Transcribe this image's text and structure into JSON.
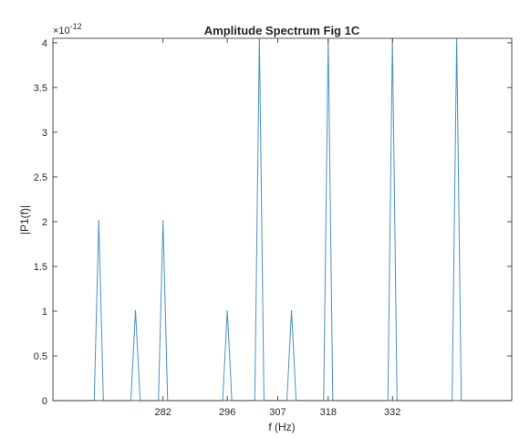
{
  "chart_data": {
    "type": "line",
    "title": "Amplitude Spectrum Fig 1C",
    "xlabel": "f (Hz)",
    "ylabel": "|P1(f)|",
    "y_exponent_label": "×10",
    "y_exponent": "-12",
    "xlim": [
      258,
      358
    ],
    "ylim": [
      0,
      4.05
    ],
    "xticks": [
      282,
      296,
      307,
      318,
      332
    ],
    "yticks": [
      0,
      0.5,
      1,
      1.5,
      2,
      2.5,
      3,
      3.5,
      4
    ],
    "ytick_labels": [
      "0",
      "0.5",
      "1",
      "1.5",
      "2",
      "2.5",
      "3",
      "3.5",
      "4"
    ],
    "grid": false,
    "series": [
      {
        "color": "#4a90c8",
        "x": [
          258,
          267,
          268,
          269,
          275,
          276,
          277,
          281,
          282,
          283,
          295,
          296,
          297,
          302,
          303,
          304,
          309,
          310,
          311,
          317,
          318,
          319,
          331,
          332,
          333,
          345,
          346,
          347,
          358
        ],
        "y": [
          0,
          0,
          2.02,
          0,
          0,
          1.01,
          0,
          0,
          2.02,
          0,
          0,
          1.01,
          0,
          0,
          4.05,
          0,
          0,
          1.01,
          0,
          0,
          4.05,
          0,
          0,
          4.05,
          0,
          0,
          4.05,
          0,
          0
        ]
      }
    ]
  }
}
